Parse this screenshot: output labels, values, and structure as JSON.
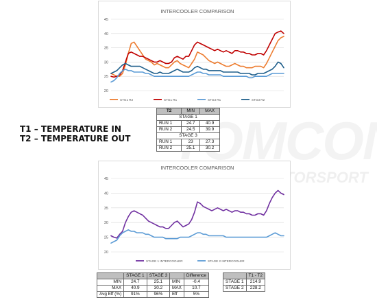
{
  "headlines": [
    "T1 – TEMPERATURE IN",
    "T2 – TEMPERATURE OUT"
  ],
  "watermark": {
    "main": "TOMCON",
    "sub": "MOTORSPORT"
  },
  "t2_table": {
    "headers": [
      "T2",
      "MIN",
      "MAX"
    ],
    "stage1_label": "STAGE 1",
    "stage3_label": "STAGE 3",
    "stage1_rows": [
      [
        "RUN 1",
        "24.7",
        "40.9"
      ],
      [
        "RUN 2",
        "24.5",
        "39.9"
      ]
    ],
    "stage3_rows": [
      [
        "RUN 1",
        "23",
        "27.3"
      ],
      [
        "RUN 2",
        "25.1",
        "30.2"
      ]
    ]
  },
  "stage_table": {
    "headers": [
      "",
      "STAGE 1",
      "STAGE 3"
    ],
    "rows": [
      [
        "MIN",
        "24.7",
        "25.1"
      ],
      [
        "MAX",
        "40.9",
        "30.2"
      ],
      [
        "Avg Eff (%)",
        "91%",
        "96%"
      ]
    ]
  },
  "diff_table": {
    "headers": [
      "",
      "Difference"
    ],
    "rows": [
      [
        "MIN",
        "-0.4"
      ],
      [
        "MAX",
        "10.7"
      ],
      [
        "Eff",
        "5%"
      ]
    ]
  },
  "t1t2_table": {
    "headers": [
      "",
      "T1 - T2"
    ],
    "rows": [
      [
        "STAGE 1",
        "214.9"
      ],
      [
        "STAGE 2",
        "228.2"
      ]
    ]
  },
  "chart_data": [
    {
      "type": "line",
      "title": "INTERCOOLER COMPARISON",
      "ylim": [
        20,
        45
      ],
      "yticks": [
        20,
        25,
        30,
        35,
        40,
        45
      ],
      "grid": true,
      "legend_position": "bottom",
      "x": [
        0,
        1,
        2,
        3,
        4,
        5,
        6,
        7,
        8,
        9,
        10,
        11,
        12,
        13,
        14,
        15,
        16,
        17,
        18,
        19,
        20,
        21,
        22,
        23,
        24,
        25,
        26,
        27,
        28,
        29,
        30,
        31,
        32,
        33,
        34,
        35,
        36,
        37,
        38,
        39,
        40,
        41,
        42,
        43,
        44,
        45,
        46,
        47,
        48,
        49,
        50,
        51,
        52,
        53,
        54,
        55,
        56,
        57,
        58,
        59,
        60
      ],
      "series": [
        {
          "name": "STG1 R2",
          "color": "#ed7d31",
          "values": [
            26,
            25.5,
            25,
            25,
            26,
            29,
            33,
            36.5,
            37,
            35.5,
            34,
            32.5,
            31,
            30.5,
            30,
            29,
            29.5,
            29,
            28.5,
            28,
            28,
            29,
            30,
            30.5,
            29.5,
            29,
            28.5,
            28,
            29.5,
            31,
            33.5,
            33,
            32.5,
            31.5,
            30.5,
            30,
            29.5,
            30,
            29.5,
            29,
            28.5,
            28.5,
            29,
            29.5,
            29,
            28.5,
            28.5,
            28,
            28,
            28,
            28.5,
            28.5,
            28.5,
            28,
            29.5,
            31.5,
            33.5,
            35.5,
            37.5,
            38.5,
            39
          ]
        },
        {
          "name": "STG1 R1",
          "color": "#c00000",
          "values": [
            25,
            24.7,
            25,
            25.5,
            27,
            30,
            33,
            33.5,
            33,
            32.5,
            32,
            32,
            31.5,
            31,
            30.5,
            30,
            30,
            30.5,
            30,
            29.5,
            29.5,
            30,
            31.5,
            32,
            31.5,
            31,
            32,
            32,
            34,
            36,
            37,
            36.5,
            36,
            35.5,
            35,
            34.5,
            34,
            34.5,
            34,
            33.5,
            34,
            33.5,
            33,
            34,
            34,
            33.5,
            33.5,
            33,
            33,
            32.5,
            32.5,
            33,
            33,
            32.5,
            34,
            36,
            38,
            40,
            40.5,
            40.9,
            40
          ]
        },
        {
          "name": "STG3 R1",
          "color": "#5b9bd5",
          "values": [
            23,
            23.5,
            24.5,
            26,
            27,
            27.5,
            27,
            27,
            26.5,
            26.5,
            26.5,
            26.5,
            26,
            26,
            25.5,
            25,
            25,
            25,
            25,
            25,
            25,
            25,
            25,
            25,
            25,
            25,
            25,
            25,
            25.5,
            26,
            26.5,
            26.5,
            26,
            26,
            25.5,
            25.5,
            25.5,
            25.5,
            25.5,
            25,
            25,
            25,
            25,
            25,
            25,
            25,
            25,
            25,
            24.5,
            24.5,
            25,
            25,
            25,
            25,
            25,
            25.5,
            26,
            26,
            26,
            26,
            26
          ]
        },
        {
          "name": "STG3 R2",
          "color": "#1f5f8b",
          "values": [
            26,
            26.5,
            27,
            28,
            29,
            29.5,
            29,
            28.5,
            28.5,
            28.5,
            28.5,
            28,
            27.5,
            27,
            26.5,
            26,
            26,
            26.5,
            26,
            26,
            26,
            26.5,
            27,
            27.5,
            27,
            26.5,
            26.5,
            26.5,
            27,
            28,
            28.5,
            28,
            27.5,
            27.5,
            27,
            27,
            27,
            27,
            27,
            26.5,
            26.5,
            26.5,
            26.5,
            26.5,
            26.5,
            26,
            26,
            26,
            26,
            25.5,
            25.5,
            26,
            26,
            26,
            26.5,
            27,
            27.5,
            28.5,
            30,
            29.5,
            28
          ]
        }
      ]
    },
    {
      "type": "line",
      "title": "INTERCOOLER COMPARISON",
      "ylim": [
        20,
        45
      ],
      "yticks": [
        20,
        25,
        30,
        35,
        40,
        45
      ],
      "grid": true,
      "legend_position": "bottom",
      "x": [
        0,
        1,
        2,
        3,
        4,
        5,
        6,
        7,
        8,
        9,
        10,
        11,
        12,
        13,
        14,
        15,
        16,
        17,
        18,
        19,
        20,
        21,
        22,
        23,
        24,
        25,
        26,
        27,
        28,
        29,
        30,
        31,
        32,
        33,
        34,
        35,
        36,
        37,
        38,
        39,
        40,
        41,
        42,
        43,
        44,
        45,
        46,
        47,
        48,
        49,
        50,
        51,
        52,
        53,
        54,
        55,
        56,
        57,
        58,
        59,
        60
      ],
      "series": [
        {
          "name": "STAGE 1 INTERCOOLER",
          "color": "#7030a0",
          "values": [
            25.5,
            25,
            24.7,
            26,
            27,
            30,
            32,
            33.5,
            34,
            33.5,
            33,
            32.5,
            31.5,
            30.5,
            30,
            29.5,
            29,
            28.5,
            28.5,
            28,
            28,
            29,
            30,
            30.5,
            29.5,
            28.5,
            29,
            29.5,
            31,
            33.5,
            37,
            36.5,
            35.5,
            35,
            34.5,
            34,
            34.5,
            35,
            34.5,
            34,
            34.5,
            34,
            33.5,
            34,
            34,
            33.5,
            33.5,
            33,
            33,
            32.5,
            32.5,
            33,
            33,
            32.5,
            34,
            36.5,
            38.5,
            40,
            40.9,
            40,
            39.5
          ]
        },
        {
          "name": "STAGE 2 INTERCOOLER",
          "color": "#5b9bd5",
          "values": [
            23,
            23.5,
            24,
            25.5,
            26.5,
            27,
            27.5,
            27,
            27,
            26.5,
            26.5,
            26.5,
            26,
            26,
            25.5,
            25,
            25,
            25,
            25,
            24.5,
            24.5,
            24.5,
            24.5,
            24.5,
            25,
            25,
            25,
            25,
            25.5,
            26,
            26.5,
            26.5,
            26,
            26,
            25.5,
            25.5,
            25.5,
            25.5,
            25.5,
            25.5,
            25,
            25,
            25,
            25,
            25,
            25,
            25,
            25,
            25,
            25,
            25,
            25,
            25,
            25,
            25,
            25.5,
            26,
            26.5,
            26,
            25.5,
            25.5
          ]
        }
      ]
    }
  ]
}
